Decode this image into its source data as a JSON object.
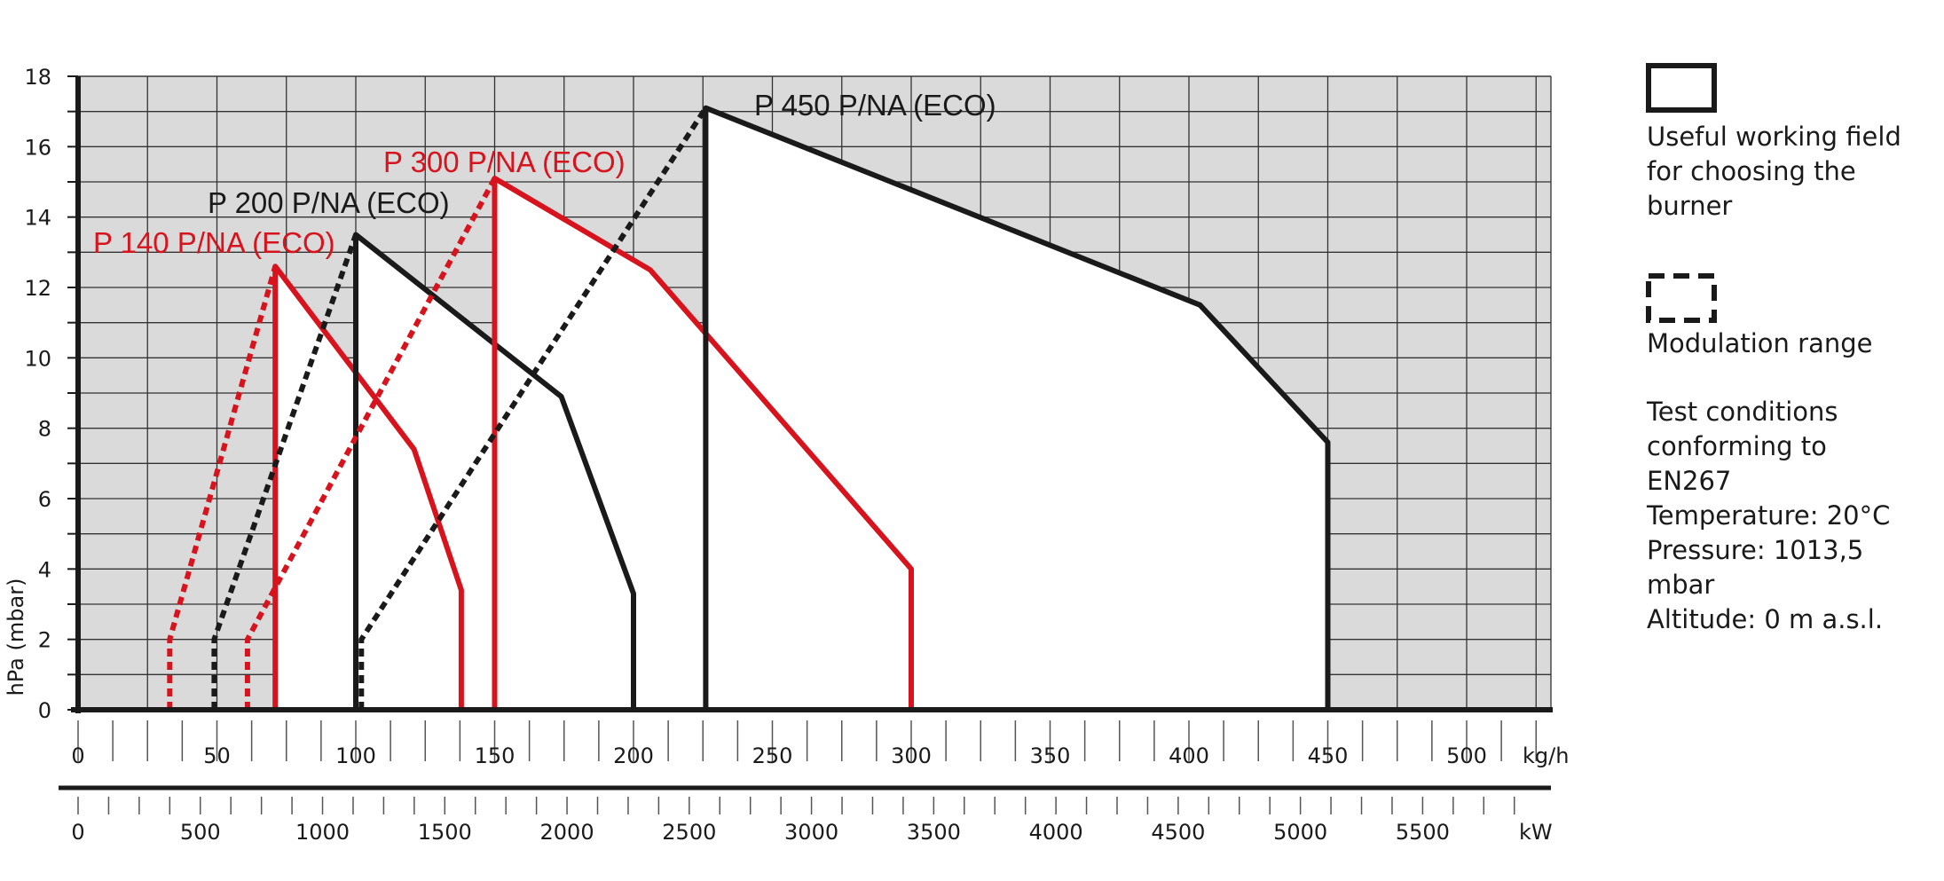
{
  "chart_data": {
    "type": "area",
    "ylabel": "hPa (mbar)",
    "ylim": [
      0,
      18
    ],
    "y_ticks": [
      0,
      2,
      4,
      6,
      8,
      10,
      12,
      14,
      16,
      18
    ],
    "x_unit": "kg/h",
    "xlim": [
      0,
      530
    ],
    "x_ticks": [
      0,
      50,
      100,
      150,
      200,
      250,
      300,
      350,
      400,
      450,
      500
    ],
    "kw_unit": "kW",
    "kw_ticks": [
      0,
      500,
      1000,
      1500,
      2000,
      2500,
      3000,
      3500,
      4000,
      4500,
      5000,
      5500
    ],
    "kw_per_kgh": 11.36,
    "grid": true,
    "series": [
      {
        "name": "P 140 P/NA (ECO)",
        "color": "#d7141e",
        "working_field": [
          [
            71,
            0
          ],
          [
            71,
            12.6
          ],
          [
            121,
            7.4
          ],
          [
            138,
            3.4
          ],
          [
            138,
            0
          ]
        ],
        "modulation": [
          [
            33,
            0
          ],
          [
            33,
            2.0
          ],
          [
            71,
            12.6
          ]
        ]
      },
      {
        "name": "P 200 P/NA (ECO)",
        "color": "#1a1a1a",
        "working_field": [
          [
            100,
            0
          ],
          [
            100,
            13.5
          ],
          [
            174,
            8.9
          ],
          [
            200,
            3.3
          ],
          [
            200,
            0
          ]
        ],
        "modulation": [
          [
            49,
            0
          ],
          [
            49,
            2.0
          ],
          [
            100,
            13.5
          ]
        ]
      },
      {
        "name": "P 300 P/NA (ECO)",
        "color": "#d7141e",
        "working_field": [
          [
            150,
            0
          ],
          [
            150,
            15.1
          ],
          [
            206,
            12.5
          ],
          [
            300,
            4.0
          ],
          [
            300,
            0
          ]
        ],
        "modulation": [
          [
            61,
            0
          ],
          [
            61,
            2.0
          ],
          [
            150,
            15.1
          ]
        ]
      },
      {
        "name": "P 450 P/NA (ECO)",
        "color": "#1a1a1a",
        "working_field": [
          [
            226,
            0
          ],
          [
            226,
            17.1
          ],
          [
            404,
            11.5
          ],
          [
            450,
            7.6
          ],
          [
            450,
            0
          ]
        ],
        "modulation": [
          [
            102,
            0
          ],
          [
            102,
            2.0
          ],
          [
            226,
            17.1
          ]
        ]
      }
    ]
  },
  "legend": {
    "working_field": "Useful working field for choosing the burner",
    "modulation": "Modulation range",
    "conditions": [
      "Test conditions",
      "conforming to",
      "EN267",
      "Temperature: 20°C",
      "Pressure: 1013,5",
      "mbar",
      "Altitude: 0 m a.s.l."
    ]
  }
}
